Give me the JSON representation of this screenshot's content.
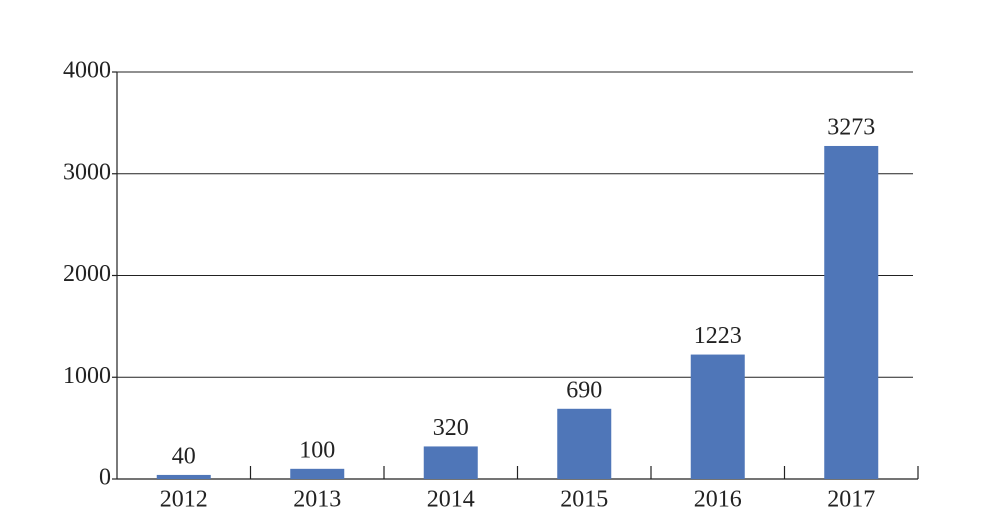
{
  "chart_data": {
    "type": "bar",
    "categories": [
      "2012",
      "2013",
      "2014",
      "2015",
      "2016",
      "2017"
    ],
    "values": [
      40,
      100,
      320,
      690,
      1223,
      3273
    ],
    "color": "#4f76b8",
    "ylim": [
      0,
      4000
    ],
    "yticks": [
      0,
      1000,
      2000,
      3000,
      4000
    ],
    "grid": true
  }
}
